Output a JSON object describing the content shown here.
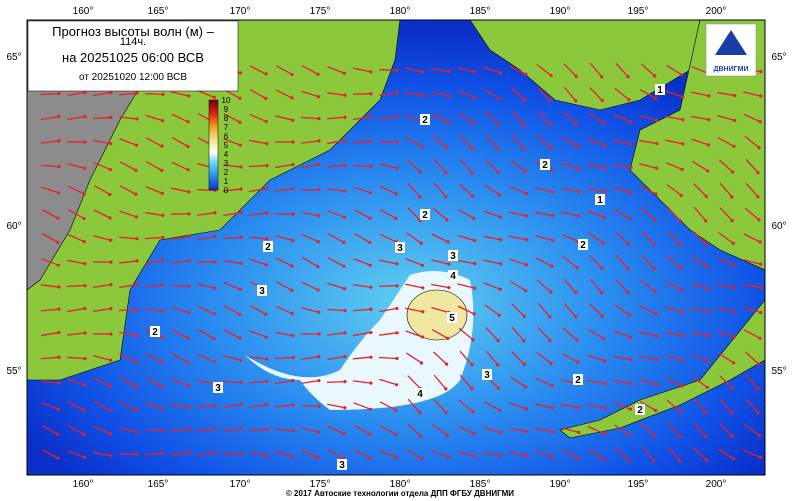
{
  "title": {
    "line1": "Прогноз высоты волн (м) –",
    "line2": "114ч.",
    "line3": "на 20251025 06:00 ВСВ",
    "line4": "от 20251020 12:00 ВСВ"
  },
  "legend": {
    "ticks": [
      0,
      1,
      2,
      3,
      4,
      5,
      6,
      7,
      8,
      9,
      10
    ]
  },
  "longitude_labels": [
    "160°",
    "165°",
    "170°",
    "175°",
    "180°",
    "185°",
    "190°",
    "195°",
    "200°"
  ],
  "latitude_labels": [
    "65°",
    "60°",
    "55°"
  ],
  "contour_labels": [
    1,
    2,
    2,
    1,
    2,
    2,
    2,
    3,
    3,
    3,
    4,
    5,
    2,
    3,
    3,
    2,
    4,
    2,
    3
  ],
  "logo": "ДВНИГМИ",
  "footer": "© 2017 Автоские технологии отдела ДПП ФГБУ ДВНИГМИ"
}
